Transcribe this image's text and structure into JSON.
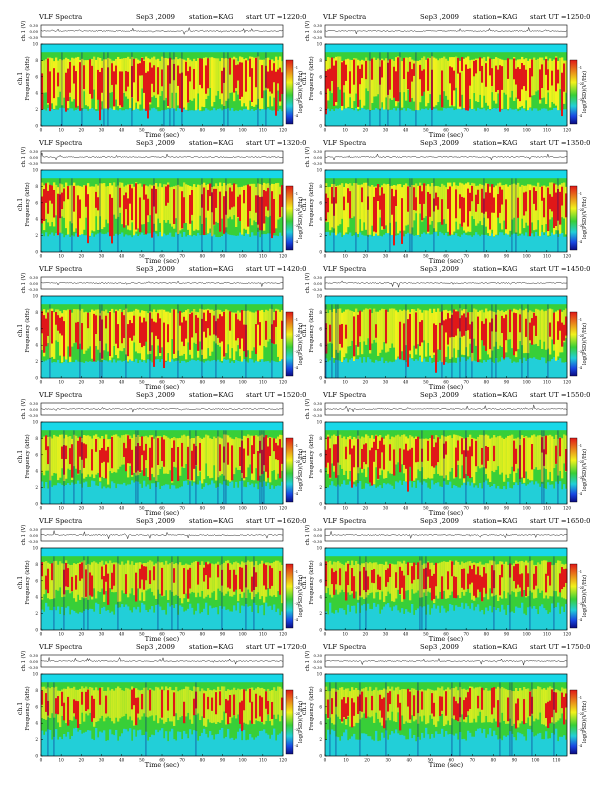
{
  "chart_data": {
    "type": "heatmap",
    "panels": [
      {
        "title": "VLF Spectra",
        "date": "Sep3 ,2009",
        "station": "station=KAG",
        "start": "start  UT  =1220:0",
        "xmax": 120,
        "seed": 11,
        "profile": 1.0
      },
      {
        "title": "VLF Spectra",
        "date": "Sep3 ,2009",
        "station": "station=KAG",
        "start": "start  UT  =1250:0",
        "xmax": 120,
        "seed": 23,
        "profile": 1.0
      },
      {
        "title": "VLF Spectra",
        "date": "Sep3 ,2009",
        "station": "station=KAG",
        "start": "start  UT  =1320:0",
        "xmax": 120,
        "seed": 37,
        "profile": 0.9
      },
      {
        "title": "VLF Spectra",
        "date": "Sep3 ,2009",
        "station": "station=KAG",
        "start": "start  UT  =1350:0",
        "xmax": 120,
        "seed": 41,
        "profile": 0.9
      },
      {
        "title": "VLF Spectra",
        "date": "Sep3 ,2009",
        "station": "station=KAG",
        "start": "start  UT  =1420:0",
        "xmax": 120,
        "seed": 53,
        "profile": 0.95
      },
      {
        "title": "VLF Spectra",
        "date": "Sep3 ,2009",
        "station": "station=KAG",
        "start": "start  UT  =1450:0",
        "xmax": 120,
        "seed": 67,
        "profile": 0.85
      },
      {
        "title": "VLF Spectra",
        "date": "Sep3 ,2009",
        "station": "station=KAG",
        "start": "start  UT  =1520:0",
        "xmax": 120,
        "seed": 71,
        "profile": 0.7
      },
      {
        "title": "VLF Spectra",
        "date": "Sep3 ,2009",
        "station": "station=KAG",
        "start": "start  UT  =1550:0",
        "xmax": 120,
        "seed": 83,
        "profile": 0.7
      },
      {
        "title": "VLF Spectra",
        "date": "Sep3 ,2009",
        "station": "station=KAG",
        "start": "start  UT  =1620:0",
        "xmax": 120,
        "seed": 97,
        "profile": 0.5
      },
      {
        "title": "VLF Spectra",
        "date": "Sep3 ,2009",
        "station": "station=KAG",
        "start": "start  UT  =1650:0",
        "xmax": 120,
        "seed": 101,
        "profile": 0.5
      },
      {
        "title": "VLF Spectra",
        "date": "Sep3 ,2009",
        "station": "station=KAG",
        "start": "start  UT  =1720:0",
        "xmax": 120,
        "seed": 113,
        "profile": 0.45
      },
      {
        "title": "VLF Spectra",
        "date": "Sep3 ,2009",
        "station": "station=KAG",
        "start": "start  UT  =1750:0",
        "xmax": 115,
        "seed": 127,
        "profile": 0.45
      }
    ],
    "top_axis": {
      "label": "ch.1 (V)",
      "ticks": [
        "0.30",
        "0.00",
        "-0.30"
      ]
    },
    "spectrogram": {
      "xlabel": "Time (sec)",
      "ylabel": "Frequency (kHz)",
      "channel": "ch.1",
      "ylim": [
        0,
        10
      ],
      "yticks": [
        0,
        2,
        4,
        6,
        8,
        10
      ],
      "xticks": [
        0,
        10,
        20,
        30,
        40,
        50,
        60,
        70,
        80,
        90,
        100,
        110,
        120
      ]
    },
    "colorbar": {
      "label": "log(PSD)(V²/Hz)",
      "ticks": [
        "-1",
        "-2",
        "-3",
        "-4"
      ]
    },
    "colors": {
      "red": "#e01818",
      "yellow": "#f2f21c",
      "green": "#38cf38",
      "cyan": "#22cfd8",
      "blue": "#1846e0",
      "navy": "#0b0b80",
      "band": "#18d8e8"
    }
  }
}
